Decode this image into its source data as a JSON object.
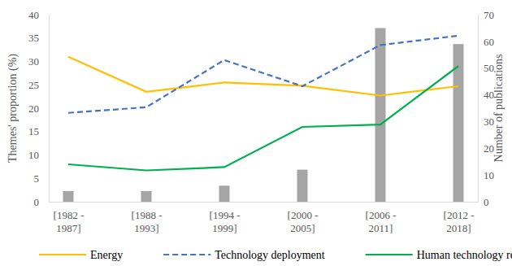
{
  "chart_data": {
    "type": "line",
    "categories": [
      "[1982 - 1987]",
      "[1988 - 1993]",
      "[1994 - 1999]",
      "[2000 - 2005]",
      "[2006 - 2011]",
      "[2012 - 2018]"
    ],
    "y_label": "Themes' proportion (%)",
    "y2_label": "Number of publications",
    "ylim": [
      0,
      40
    ],
    "yticks": [
      0,
      5,
      10,
      15,
      20,
      25,
      30,
      35,
      40
    ],
    "y2lim": [
      0,
      70
    ],
    "y2ticks": [
      0,
      10,
      20,
      30,
      40,
      50,
      60,
      70
    ],
    "legend": "bottom",
    "series": [
      {
        "name": "Energy",
        "type": "line",
        "color": "#ffc000",
        "line_style": "solid",
        "values": [
          31,
          23.5,
          25.5,
          24.8,
          22.7,
          24.7
        ]
      },
      {
        "name": "Technology deployment",
        "type": "line",
        "color": "#4472c4",
        "line_style": "dashed",
        "values": [
          19,
          20.2,
          30.3,
          24.7,
          33.5,
          35.5
        ]
      },
      {
        "name": "Human technology relationship",
        "type": "line",
        "color": "#00b050",
        "line_style": "solid",
        "values": [
          8,
          6.7,
          7.4,
          16,
          16.5,
          29
        ]
      },
      {
        "type": "bar",
        "axis": "y2",
        "color": "#a5a5a5",
        "values": [
          4,
          4,
          6,
          12,
          65,
          59
        ]
      }
    ]
  }
}
